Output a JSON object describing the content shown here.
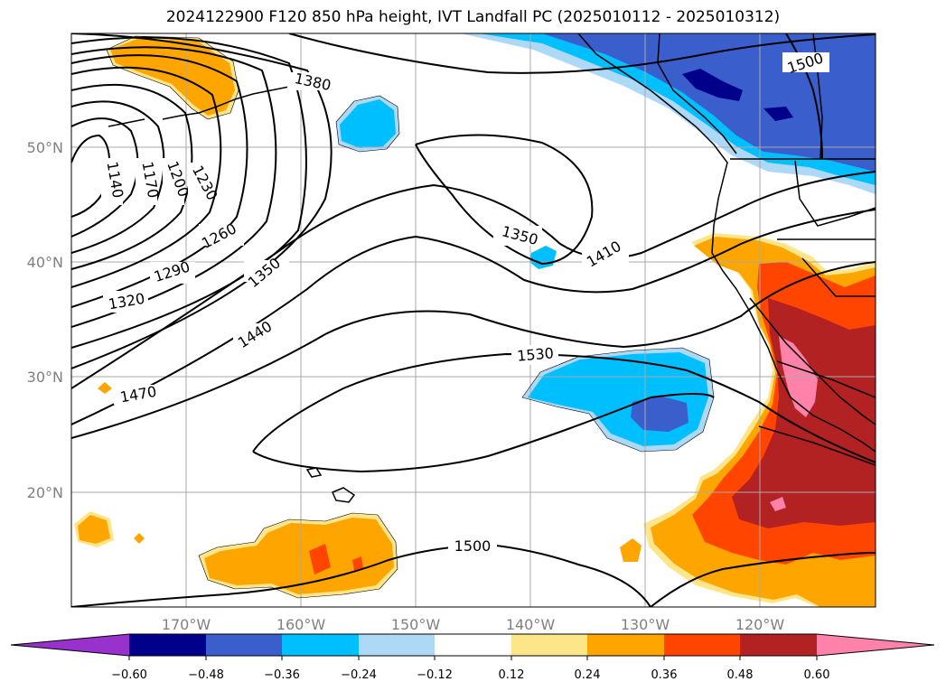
{
  "title": "2024122900 F120 850 hPa height, IVT Landfall PC (2025010112 - 2025010312)",
  "lat_labels": [
    "50°N",
    "40°N",
    "30°N",
    "20°N"
  ],
  "lon_labels": [
    "170°W",
    "160°W",
    "150°W",
    "140°W",
    "130°W",
    "120°W"
  ],
  "contour_labels": [
    "1140",
    "1170",
    "1200",
    "1230",
    "1260",
    "1290",
    "1320",
    "1350",
    "1380",
    "1350",
    "1410",
    "1440",
    "1470",
    "1500",
    "1530",
    "1500"
  ],
  "colorbar": {
    "tick_labels": [
      "−0.60",
      "−0.48",
      "−0.36",
      "−0.24",
      "−0.12",
      "0.12",
      "0.24",
      "0.36",
      "0.48",
      "0.60"
    ],
    "colors": [
      "#9932cc",
      "#00008b",
      "#3a5fcd",
      "#00bfff",
      "#add8f6",
      "#ffffff",
      "#fde68a",
      "#ffa500",
      "#ff4500",
      "#b22222",
      "#ff82ab"
    ]
  },
  "map_colors": {
    "neg_light": "#add8f6",
    "neg_mid": "#00bfff",
    "neg_strong": "#3a5fcd",
    "neg_max": "#00008b",
    "pos_light": "#fde68a",
    "pos_mid": "#ffa500",
    "pos_strong": "#ff4500",
    "pos_max": "#b22222",
    "pos_peak": "#ff82ab"
  }
}
